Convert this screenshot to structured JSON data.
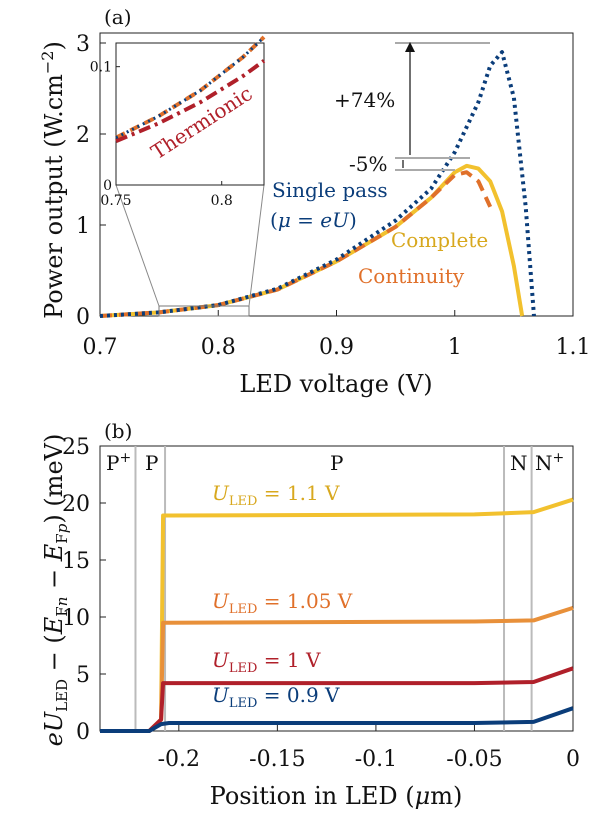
{
  "chart_data": [
    {
      "type": "line",
      "panel_label": "(a)",
      "xlabel": "LED voltage (V)",
      "ylabel": "Power output (W.cm⁻²)",
      "xlim": [
        0.7,
        1.1
      ],
      "ylim": [
        0,
        3
      ],
      "x_ticks": [
        "0.7",
        "0.8",
        "0.9",
        "1",
        "1.1"
      ],
      "y_ticks": [
        "0",
        "1",
        "2",
        "3"
      ],
      "colors": {
        "single_pass": "#0b3d7a",
        "complete": "#f2c12e",
        "continuity": "#e0702a",
        "thermionic": "#b0202a"
      },
      "series": [
        {
          "name": "Single pass (μ = eU)",
          "style": "dotted",
          "x": [
            0.7,
            0.75,
            0.8,
            0.85,
            0.9,
            0.95,
            0.98,
            1.0,
            1.02,
            1.03,
            1.04,
            1.05,
            1.06,
            1.067
          ],
          "y": [
            0.0,
            0.04,
            0.12,
            0.3,
            0.62,
            1.05,
            1.4,
            1.8,
            2.35,
            2.75,
            2.9,
            2.4,
            1.2,
            0.0
          ]
        },
        {
          "name": "Complete",
          "style": "solid",
          "x": [
            0.7,
            0.75,
            0.8,
            0.85,
            0.9,
            0.95,
            0.98,
            1.0,
            1.01,
            1.02,
            1.03,
            1.04,
            1.05,
            1.057
          ],
          "y": [
            0.0,
            0.04,
            0.12,
            0.29,
            0.6,
            0.98,
            1.3,
            1.58,
            1.65,
            1.62,
            1.48,
            1.15,
            0.55,
            0.0
          ]
        },
        {
          "name": "Continuity",
          "style": "dashed",
          "x": [
            0.7,
            0.75,
            0.8,
            0.85,
            0.9,
            0.95,
            0.98,
            1.0,
            1.01,
            1.02,
            1.03
          ],
          "y": [
            0.0,
            0.04,
            0.12,
            0.29,
            0.6,
            0.98,
            1.3,
            1.55,
            1.58,
            1.48,
            1.2
          ]
        }
      ],
      "annotations": {
        "single_pass_line1": "Single pass",
        "single_pass_line2": "(μ = eU)",
        "complete": "Complete",
        "continuity": "Continuity",
        "plus": "+74%",
        "minus": "-5%"
      },
      "inset": {
        "xlim": [
          0.75,
          0.82
        ],
        "ylim": [
          0,
          0.12
        ],
        "x_ticks": [
          "0.75",
          "0.8"
        ],
        "y_ticks": [
          "0",
          "0.1"
        ],
        "label": "Thermionic",
        "series": [
          {
            "name": "Single pass",
            "x": [
              0.75,
              0.77,
              0.79,
              0.81,
              0.82
            ],
            "y": [
              0.04,
              0.058,
              0.08,
              0.108,
              0.125
            ]
          },
          {
            "name": "Complete",
            "x": [
              0.75,
              0.77,
              0.79,
              0.81,
              0.82
            ],
            "y": [
              0.04,
              0.058,
              0.08,
              0.108,
              0.125
            ]
          },
          {
            "name": "Thermionic",
            "x": [
              0.75,
              0.77,
              0.79,
              0.81,
              0.82
            ],
            "y": [
              0.037,
              0.052,
              0.07,
              0.092,
              0.105
            ]
          }
        ]
      }
    },
    {
      "type": "line",
      "panel_label": "(b)",
      "xlabel": "Position in LED (μm)",
      "ylabel": "eU_LED − (E_Fn − E_Fp) (meV)",
      "xlim": [
        -0.24,
        0
      ],
      "ylim": [
        0,
        25
      ],
      "x_ticks": [
        "-0.2",
        "-0.15",
        "-0.1",
        "-0.05",
        "0"
      ],
      "y_ticks": [
        "0",
        "5",
        "10",
        "15",
        "20",
        "25"
      ],
      "regions": [
        "P⁺",
        "P",
        "P",
        "N",
        "N⁺"
      ],
      "series": [
        {
          "name": "U_LED = 1.1 V",
          "color": "#f2c12e",
          "x": [
            -0.24,
            -0.215,
            -0.209,
            -0.208,
            -0.205,
            -0.05,
            -0.02,
            0
          ],
          "y": [
            0.0,
            0.0,
            1.0,
            18.9,
            18.9,
            19.0,
            19.2,
            20.3
          ]
        },
        {
          "name": "U_LED = 1.05 V",
          "color": "#e8903a",
          "x": [
            -0.24,
            -0.215,
            -0.209,
            -0.208,
            -0.205,
            -0.05,
            -0.02,
            0
          ],
          "y": [
            0.0,
            0.0,
            1.0,
            9.5,
            9.5,
            9.6,
            9.7,
            10.8
          ]
        },
        {
          "name": "U_LED = 1 V",
          "color": "#b0202a",
          "x": [
            -0.24,
            -0.215,
            -0.209,
            -0.208,
            -0.205,
            -0.05,
            -0.02,
            0
          ],
          "y": [
            0.0,
            0.0,
            1.0,
            4.2,
            4.2,
            4.2,
            4.3,
            5.5
          ]
        },
        {
          "name": "U_LED = 0.9 V",
          "color": "#0b3d7a",
          "x": [
            -0.24,
            -0.215,
            -0.209,
            -0.205,
            -0.05,
            -0.02,
            0
          ],
          "y": [
            0.0,
            0.0,
            0.6,
            0.7,
            0.7,
            0.8,
            2.0
          ]
        }
      ],
      "labels": {
        "u11": "1.1 V",
        "u105": "1.05 V",
        "u1": "1 V",
        "u09": "0.9 V"
      }
    }
  ]
}
